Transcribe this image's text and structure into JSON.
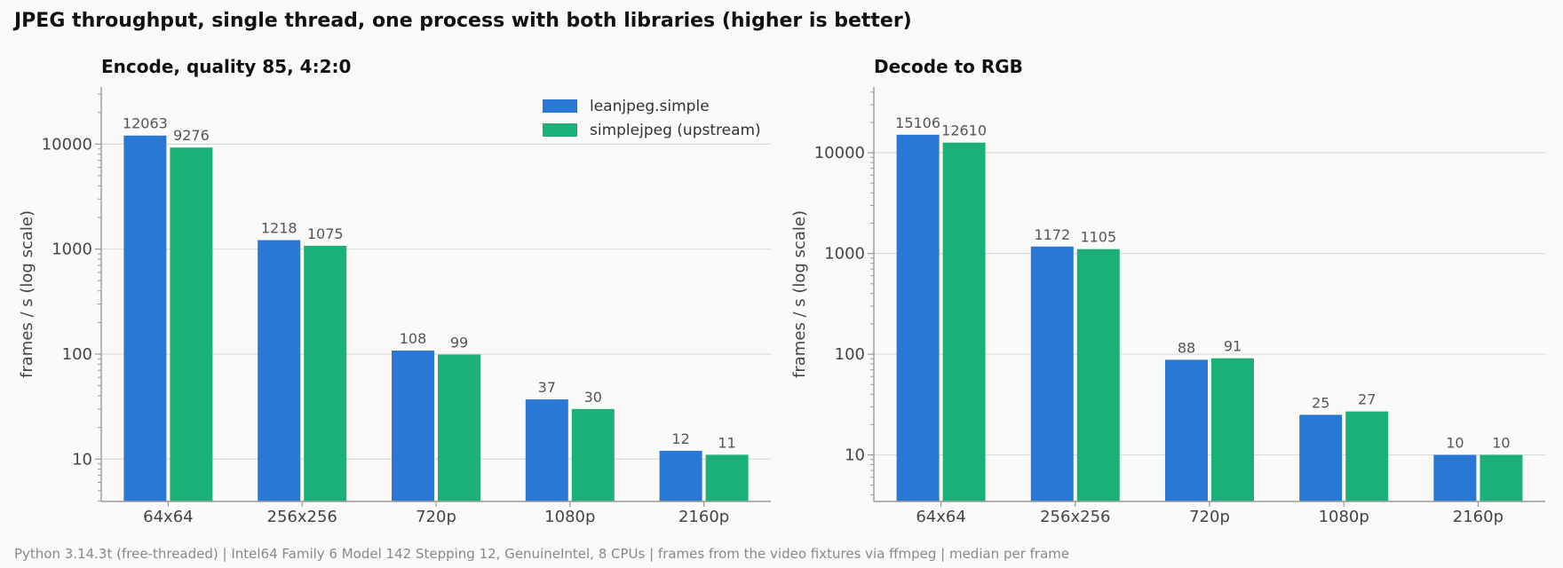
{
  "figure": {
    "title": "JPEG throughput, single thread, one process with both libraries (higher is better)",
    "footer": "Python 3.14.3t (free-threaded) | Intel64 Family 6 Model 142 Stepping 12, GenuineIntel, 8 CPUs | frames from the video fixtures via ffmpeg | median per frame"
  },
  "colors": {
    "leanjpeg": "#2a78d6",
    "simplejpeg": "#1bb07a",
    "grid": "#d9d9d9",
    "axis": "#999999"
  },
  "chart_data": [
    {
      "type": "bar",
      "title": "Encode, quality 85, 4:2:0",
      "xlabel": "",
      "ylabel": "frames / s (log scale)",
      "yscale": "log",
      "ylim": [
        3.95,
        35000
      ],
      "yticks": [
        10,
        100,
        1000,
        10000
      ],
      "legend": "top-right",
      "categories": [
        "64x64",
        "256x256",
        "720p",
        "1080p",
        "2160p"
      ],
      "series": [
        {
          "name": "leanjpeg.simple",
          "color": "#2a78d6",
          "values": [
            12063,
            1218,
            108,
            37,
            12
          ]
        },
        {
          "name": "simplejpeg (upstream)",
          "color": "#1bb07a",
          "values": [
            9276,
            1075,
            99,
            30,
            11
          ]
        }
      ]
    },
    {
      "type": "bar",
      "title": "Decode to RGB",
      "xlabel": "",
      "ylabel": "frames / s (log scale)",
      "yscale": "log",
      "ylim": [
        3.45,
        45000
      ],
      "yticks": [
        10,
        100,
        1000,
        10000
      ],
      "categories": [
        "64x64",
        "256x256",
        "720p",
        "1080p",
        "2160p"
      ],
      "series": [
        {
          "name": "leanjpeg.simple",
          "color": "#2a78d6",
          "values": [
            15106,
            1172,
            88,
            25,
            10
          ]
        },
        {
          "name": "simplejpeg (upstream)",
          "color": "#1bb07a",
          "values": [
            12610,
            1105,
            91,
            27,
            10
          ]
        }
      ]
    }
  ]
}
